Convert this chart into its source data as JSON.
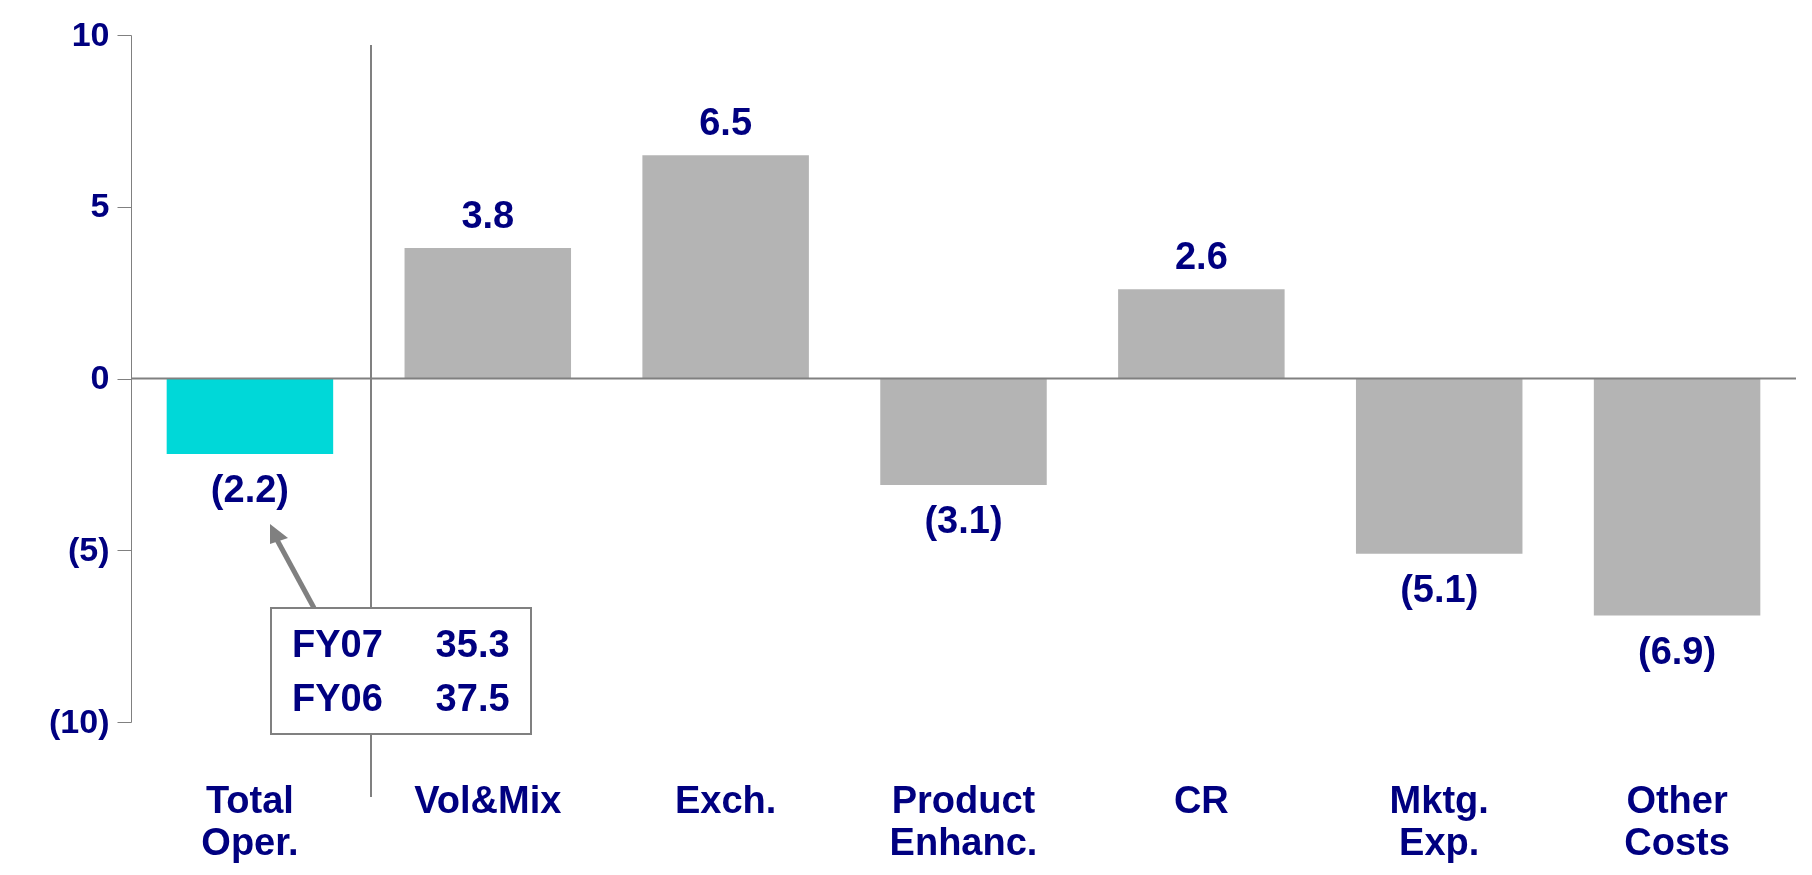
{
  "chart_data": {
    "type": "bar",
    "categories": [
      "Total Oper.",
      "Vol&Mix",
      "Exch.",
      "Product Enhanc.",
      "CR",
      "Mktg. Exp.",
      "Other Costs"
    ],
    "values": [
      -2.2,
      3.8,
      6.5,
      -3.1,
      2.6,
      -5.1,
      -6.9
    ],
    "colors": [
      "#00d8d8",
      "#b4b4b4",
      "#b4b4b4",
      "#b4b4b4",
      "#b4b4b4",
      "#b4b4b4",
      "#b4b4b4"
    ],
    "value_labels": [
      "(2.2)",
      "3.8",
      "6.5",
      "(3.1)",
      "2.6",
      "(5.1)",
      "(6.9)"
    ],
    "ylim": [
      -10,
      10
    ],
    "yticks": [
      10,
      5,
      0,
      {
        "value": -5,
        "label": "(5)"
      },
      {
        "value": -10,
        "label": "(10)"
      }
    ],
    "annotations": [
      "FY07     35.3",
      "FY06     37.5"
    ],
    "data_labels": true
  }
}
